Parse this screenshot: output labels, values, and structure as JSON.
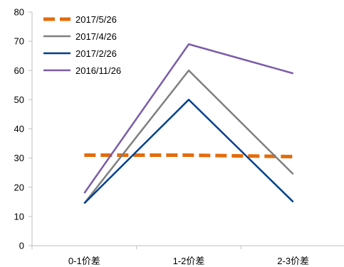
{
  "chart_data": {
    "type": "line",
    "categories": [
      "0-1价差",
      "1-2价差",
      "2-3价差"
    ],
    "ylim": [
      0,
      80
    ],
    "yticks": [
      0,
      10,
      20,
      30,
      40,
      50,
      60,
      70,
      80
    ],
    "grid": false,
    "legend_position": "top-left",
    "series": [
      {
        "name": "2017/5/26",
        "color": "#E46C0A",
        "dashed": true,
        "values": [
          31,
          31,
          30.5
        ]
      },
      {
        "name": "2017/4/26",
        "color": "#7F7F7F",
        "dashed": false,
        "values": [
          14.5,
          60,
          24.5
        ]
      },
      {
        "name": "2017/2/26",
        "color": "#003F8C",
        "dashed": false,
        "values": [
          14.5,
          50,
          15
        ]
      },
      {
        "name": "2016/11/26",
        "color": "#7B5CA8",
        "dashed": false,
        "values": [
          18,
          69,
          59
        ]
      }
    ]
  }
}
